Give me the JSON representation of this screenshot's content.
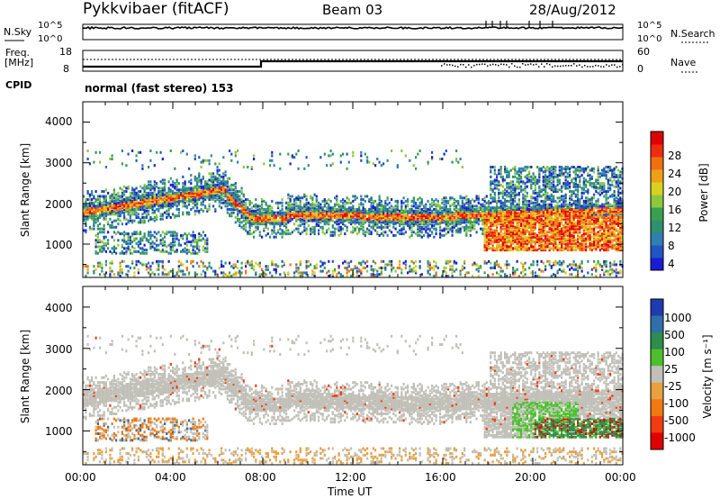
{
  "header": {
    "station": "Pykkvibaer (fitACF)",
    "beam": "Beam 03",
    "date": "28/Aug/2012"
  },
  "panels": {
    "noise": {
      "left_label": "N.Sky",
      "right_label": "N.Search",
      "left_ticks": [
        "10^5",
        "10^0"
      ],
      "right_ticks": [
        "10^5",
        "10^0"
      ]
    },
    "freq": {
      "left_label_1": "Freq.",
      "left_label_2": "[MHz]",
      "right_label": "Nave",
      "left_ticks": [
        "18",
        "8"
      ],
      "right_ticks": [
        "60",
        "0"
      ]
    },
    "cpid": {
      "label": "CPID",
      "text": "normal (fast stereo) 153"
    }
  },
  "chart_data": [
    {
      "type": "heatmap",
      "name": "power",
      "ylabel": "Slant Range [km]",
      "xlabel": "Time UT",
      "x_ticks": [
        "00:00",
        "04:00",
        "08:00",
        "12:00",
        "16:00",
        "20:00",
        "00:00"
      ],
      "xlim_hours": [
        0,
        24
      ],
      "y_ticks": [
        "1000",
        "2000",
        "3000",
        "4000"
      ],
      "ylim_km": [
        180,
        4500
      ],
      "colorbar": {
        "label": "Power [dB]",
        "range": [
          0,
          32
        ],
        "ticks": [
          "4",
          "8",
          "12",
          "16",
          "20",
          "24",
          "28"
        ],
        "colors": [
          "#1b1bd6",
          "#1f55c4",
          "#2f7fb0",
          "#2e9070",
          "#3aa050",
          "#8cc83c",
          "#d7d21e",
          "#f0a018",
          "#f07010",
          "#f02c10",
          "#e00000"
        ]
      },
      "scatter_bands": [
        {
          "t0": 0.0,
          "t1": 6.3,
          "r0": 1650,
          "r1": 2300,
          "note": "rising band"
        },
        {
          "t0": 6.0,
          "t1": 9.0,
          "r0": 1300,
          "r1": 2200
        },
        {
          "t0": 9.0,
          "t1": 16.0,
          "r0": 1550,
          "r1": 1900
        },
        {
          "t0": 16.0,
          "t1": 24.0,
          "r0": 1500,
          "r1": 2600
        },
        {
          "t0": 18.0,
          "t1": 24.0,
          "r0": 800,
          "r1": 1600
        }
      ]
    },
    {
      "type": "heatmap",
      "name": "velocity",
      "ylabel": "Slant Range [km]",
      "xlabel": "Time UT",
      "x_ticks": [
        "00:00",
        "04:00",
        "08:00",
        "12:00",
        "16:00",
        "20:00",
        "00:00"
      ],
      "xlim_hours": [
        0,
        24
      ],
      "y_ticks": [
        "1000",
        "2000",
        "3000",
        "4000"
      ],
      "ylim_km": [
        180,
        4500
      ],
      "colorbar": {
        "label": "Velocity [m s⁻¹]",
        "ticks": [
          "1000",
          "500",
          "100",
          "25",
          "-25",
          "-100",
          "-500",
          "-1000"
        ],
        "colors": [
          "#1f3bb0",
          "#2e70a8",
          "#2e8c4c",
          "#4cc02c",
          "#c0c0b8",
          "#e8a040",
          "#f07a10",
          "#f03c10",
          "#e00000"
        ]
      }
    }
  ]
}
